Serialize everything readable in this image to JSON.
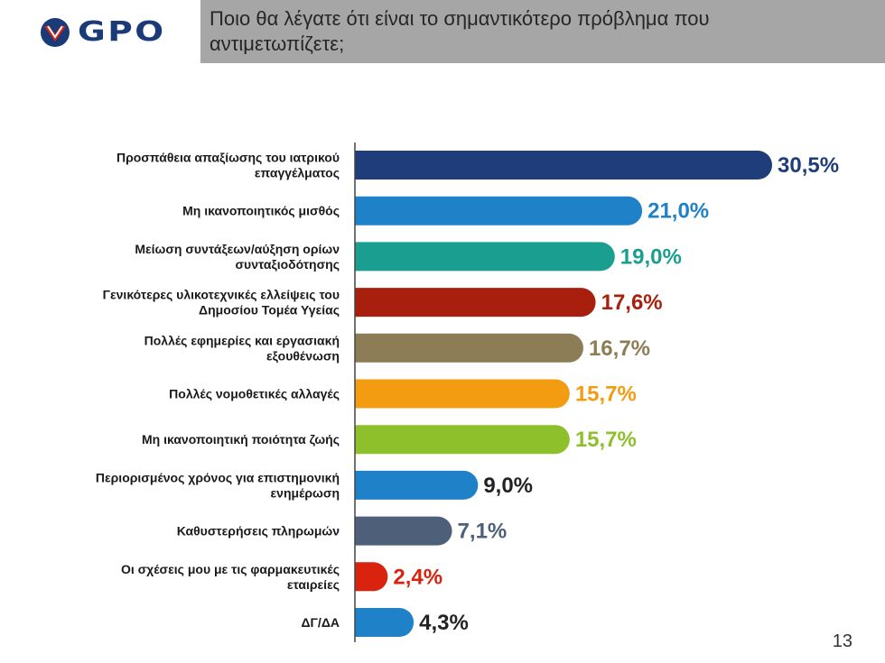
{
  "header": {
    "brand": "GPO",
    "title": "Ποιο θα λέγατε ότι είναι το σημαντικότερο πρόβλημα που αντιμετωπίζετε;"
  },
  "colors": {
    "brand": "#1a3a78",
    "title_bg": "#a6a6a6"
  },
  "chart_data": {
    "type": "bar",
    "orientation": "horizontal",
    "categories": [
      [
        "Προσπάθεια απαξίωσης του ιατρικού",
        "επαγγέλματος"
      ],
      [
        "Μη ικανοποιητικός μισθός"
      ],
      [
        "Μείωση συντάξεων/αύξηση ορίων",
        "συνταξιοδότησης"
      ],
      [
        "Γενικότερες υλικοτεχνικές ελλείψεις του",
        "Δημοσίου Τομέα Υγείας"
      ],
      [
        "Πολλές εφημερίες και εργασιακή",
        "εξουθένωση"
      ],
      [
        "Πολλές νομοθετικές αλλαγές"
      ],
      [
        "Μη ικανοποιητική ποιότητα ζωής"
      ],
      [
        "Περιορισμένος χρόνος για επιστημονική",
        "ενημέρωση"
      ],
      [
        "Καθυστερήσεις πληρωμών"
      ],
      [
        "Οι σχέσεις μου με τις φαρμακευτικές",
        "εταιρείες"
      ],
      [
        "ΔΓ/ΔΑ"
      ]
    ],
    "values": [
      30.5,
      21.0,
      19.0,
      17.6,
      16.7,
      15.7,
      15.7,
      9.0,
      7.1,
      2.4,
      4.3
    ],
    "value_labels": [
      "30,5%",
      "21,0%",
      "19,0%",
      "17,6%",
      "16,7%",
      "15,7%",
      "15,7%",
      "9,0%",
      "7,1%",
      "2,4%",
      "4,3%"
    ],
    "bar_colors": [
      "#1f3d7a",
      "#1f82c8",
      "#1a9e8f",
      "#a8200d",
      "#8c7d56",
      "#f39c12",
      "#8dc02a",
      "#1f82c8",
      "#4e6079",
      "#d9230f",
      "#1f82c8"
    ],
    "label_colors": [
      "#1f3d7a",
      "#1f82c8",
      "#1a9e8f",
      "#a8200d",
      "#8c7d56",
      "#f39c12",
      "#8dc02a",
      "#222222",
      "#4e6079",
      "#d9230f",
      "#222222"
    ],
    "xlim": [
      0,
      30.5
    ],
    "grid": false,
    "legend": "none"
  },
  "page_number": "13"
}
